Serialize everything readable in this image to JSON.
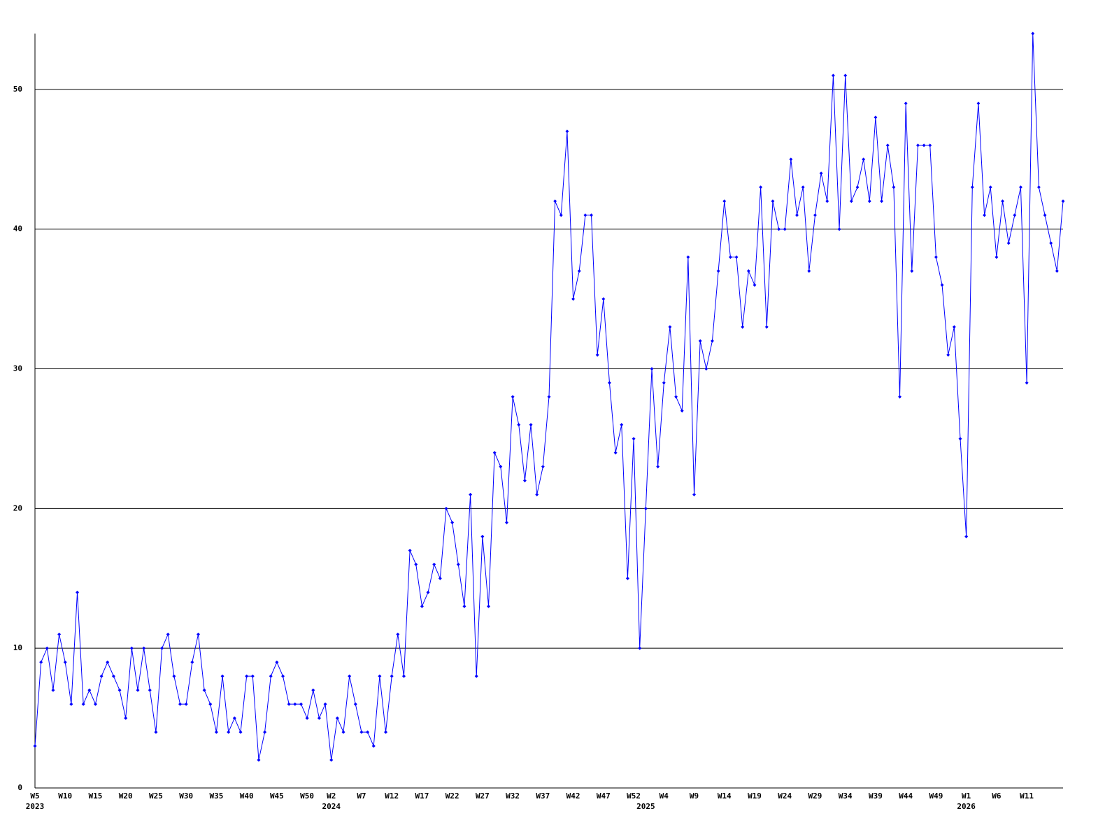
{
  "chart_data": {
    "type": "line",
    "color": "#0000ff",
    "grid": true,
    "ylim": [
      0,
      54
    ],
    "yticks": [
      0,
      10,
      20,
      30,
      40,
      50
    ],
    "categories": [
      "W5",
      null,
      null,
      null,
      null,
      "W10",
      null,
      null,
      null,
      null,
      "W15",
      null,
      null,
      null,
      null,
      "W20",
      null,
      null,
      null,
      null,
      "W25",
      null,
      null,
      null,
      null,
      "W30",
      null,
      null,
      null,
      null,
      "W35",
      null,
      null,
      null,
      null,
      "W40",
      null,
      null,
      null,
      null,
      "W45",
      null,
      null,
      null,
      null,
      "W50",
      null,
      null,
      null,
      "W2",
      null,
      null,
      null,
      null,
      "W7",
      null,
      null,
      null,
      null,
      "W12",
      null,
      null,
      null,
      null,
      "W17",
      null,
      null,
      null,
      null,
      "W22",
      null,
      null,
      null,
      null,
      "W27",
      null,
      null,
      null,
      null,
      "W32",
      null,
      null,
      null,
      null,
      "W37",
      null,
      null,
      null,
      null,
      "W42",
      null,
      null,
      null,
      null,
      "W47",
      null,
      null,
      null,
      null,
      "W52",
      null,
      null,
      null,
      null,
      "W4",
      null,
      null,
      null,
      null,
      "W9",
      null,
      null,
      null,
      null,
      "W14",
      null,
      null,
      null,
      null,
      "W19",
      null,
      null,
      null,
      null,
      "W24",
      null,
      null,
      null,
      null,
      "W29",
      null,
      null,
      null,
      null,
      "W34",
      null,
      null,
      null,
      null,
      "W39",
      null,
      null,
      null,
      null,
      "W44",
      null,
      null,
      null,
      null,
      "W49",
      null,
      null,
      null,
      null,
      "W1",
      null,
      null,
      null,
      null,
      "W6",
      null,
      null,
      null,
      null,
      "W11",
      null,
      null,
      null,
      null,
      null,
      null
    ],
    "category_years": [
      "2023",
      null,
      null,
      null,
      null,
      null,
      null,
      null,
      null,
      null,
      null,
      null,
      null,
      null,
      null,
      null,
      null,
      null,
      null,
      null,
      null,
      null,
      null,
      null,
      null,
      null,
      null,
      null,
      null,
      null,
      null,
      null,
      null,
      null,
      null,
      null,
      null,
      null,
      null,
      null,
      null,
      null,
      null,
      null,
      null,
      null,
      null,
      null,
      null,
      "2024",
      null,
      null,
      null,
      null,
      null,
      null,
      null,
      null,
      null,
      null,
      null,
      null,
      null,
      null,
      null,
      null,
      null,
      null,
      null,
      null,
      null,
      null,
      null,
      null,
      null,
      null,
      null,
      null,
      null,
      null,
      null,
      null,
      null,
      null,
      null,
      null,
      null,
      null,
      null,
      null,
      null,
      null,
      null,
      null,
      null,
      null,
      null,
      null,
      null,
      null,
      null,
      "2025",
      null,
      null,
      null,
      null,
      null,
      null,
      null,
      null,
      null,
      null,
      null,
      null,
      null,
      null,
      null,
      null,
      null,
      null,
      null,
      null,
      null,
      null,
      null,
      null,
      null,
      null,
      null,
      null,
      null,
      null,
      null,
      null,
      null,
      null,
      null,
      null,
      null,
      null,
      null,
      null,
      null,
      null,
      null,
      null,
      null,
      null,
      null,
      null,
      null,
      null,
      null,
      null,
      "2026",
      null,
      null,
      null,
      null,
      null,
      null,
      null,
      null,
      null,
      null,
      null,
      null,
      null,
      null,
      null,
      null
    ],
    "values": [
      3,
      9,
      10,
      7,
      11,
      9,
      6,
      14,
      6,
      7,
      6,
      8,
      9,
      8,
      7,
      5,
      10,
      7,
      10,
      7,
      4,
      10,
      11,
      8,
      6,
      6,
      9,
      11,
      7,
      6,
      4,
      8,
      4,
      5,
      4,
      8,
      8,
      2,
      4,
      8,
      9,
      8,
      6,
      6,
      6,
      5,
      7,
      5,
      6,
      2,
      5,
      4,
      8,
      6,
      4,
      4,
      3,
      8,
      4,
      8,
      11,
      8,
      17,
      16,
      13,
      14,
      16,
      15,
      20,
      19,
      16,
      13,
      21,
      8,
      18,
      13,
      24,
      23,
      19,
      28,
      26,
      22,
      26,
      21,
      23,
      28,
      42,
      41,
      47,
      35,
      37,
      41,
      41,
      31,
      35,
      29,
      24,
      26,
      15,
      25,
      10,
      20,
      30,
      23,
      29,
      33,
      28,
      27,
      38,
      21,
      32,
      30,
      32,
      37,
      42,
      38,
      38,
      33,
      37,
      36,
      43,
      33,
      42,
      40,
      40,
      45,
      41,
      43,
      37,
      41,
      44,
      42,
      51,
      40,
      51,
      42,
      43,
      45,
      42,
      48,
      42,
      46,
      43,
      28,
      49,
      37,
      46,
      46,
      46,
      38,
      36,
      31,
      33,
      25,
      18,
      43,
      49,
      41,
      43,
      38,
      42,
      39,
      41,
      43,
      29,
      54,
      43,
      41,
      39,
      37,
      42
    ]
  }
}
